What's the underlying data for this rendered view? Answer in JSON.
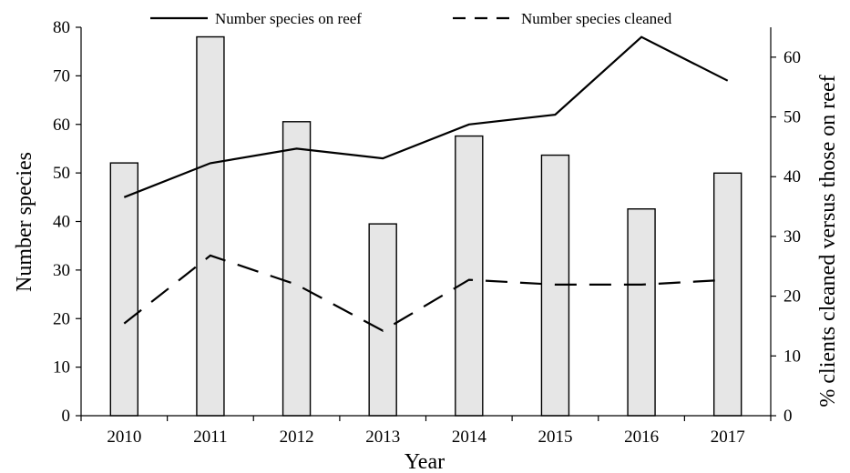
{
  "chart_data": {
    "type": "bar",
    "categories": [
      "2010",
      "2011",
      "2012",
      "2013",
      "2014",
      "2015",
      "2016",
      "2017"
    ],
    "xlabel": "Year",
    "ylabel": "Number species",
    "y2label": "% clients cleaned versus those on reef",
    "ylim": [
      0,
      80
    ],
    "y2lim": [
      0,
      65
    ],
    "yticks": [
      0,
      10,
      20,
      30,
      40,
      50,
      60,
      70,
      80
    ],
    "y2ticks": [
      0,
      10,
      20,
      30,
      40,
      50,
      60
    ],
    "grid": false,
    "legend_position": "top",
    "bars": {
      "axis": "right",
      "values": [
        42.3,
        63.4,
        49.2,
        32.1,
        46.8,
        43.6,
        34.6,
        40.6
      ]
    },
    "series": [
      {
        "name": "Number species on reef",
        "style": "solid",
        "axis": "left",
        "values": [
          45,
          52,
          55,
          53,
          60,
          62,
          78,
          69
        ]
      },
      {
        "name": "Number species cleaned",
        "style": "dashed",
        "axis": "left",
        "values": [
          19,
          33,
          27,
          17.5,
          28,
          27,
          27,
          28
        ]
      }
    ]
  }
}
